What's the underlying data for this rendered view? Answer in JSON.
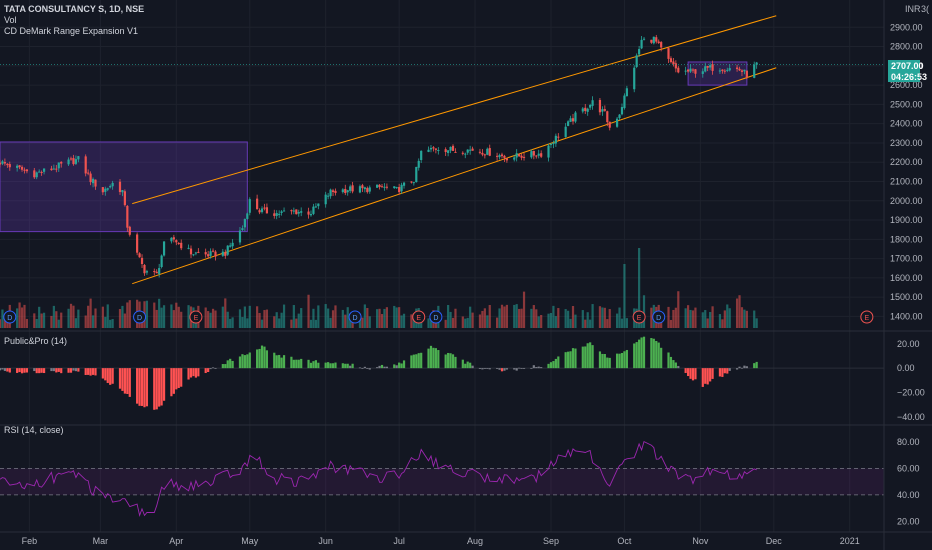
{
  "header": {
    "title": "TATA CONSULTANCY S, 1D, NSE",
    "vol_label": "Vol",
    "indicator_label": "CD DeMark Range Expansion V1",
    "currency": "INR",
    "corner_text": "3("
  },
  "panes": {
    "public_pro_label": "Public&Pro (14)",
    "rsi_label": "RSI (14, close)"
  },
  "price_tags": {
    "last_price": "2707.00",
    "countdown": "04:26:53"
  },
  "colors": {
    "up": "#26a69a",
    "down": "#ef5350",
    "channel": "#ff9800",
    "range_box": "#673ab7",
    "hist_up": "#4caf50",
    "hist_down": "#ff5252",
    "hist_neutral": "#787b86",
    "rsi_line": "#9c27b0"
  },
  "chart_data": {
    "type": "candlestick",
    "x_range": [
      "2020-01-20",
      "2021-01-15"
    ],
    "x_ticks": [
      "Feb",
      "Mar",
      "Apr",
      "May",
      "Jun",
      "Jul",
      "Aug",
      "Sep",
      "Oct",
      "Nov",
      "Dec",
      "2021"
    ],
    "x_tick_dates": [
      "2020-02-01",
      "2020-03-01",
      "2020-04-01",
      "2020-05-01",
      "2020-06-01",
      "2020-07-01",
      "2020-08-01",
      "2020-09-01",
      "2020-10-01",
      "2020-11-01",
      "2020-12-01",
      "2021-01-01"
    ],
    "price_range": [
      1340,
      3000
    ],
    "price_ticks": [
      1400,
      1500,
      1600,
      1700,
      1800,
      1900,
      2000,
      2100,
      2200,
      2300,
      2400,
      2500,
      2600,
      2700,
      2800,
      2900
    ],
    "price_tick_labels": [
      "1400.00",
      "1500.00",
      "1600.00",
      "1700.00",
      "1800.00",
      "1900.00",
      "2000.00",
      "2100.00",
      "2200.00",
      "2300.00",
      "2400.00",
      "2500.00",
      "2600.00",
      "2700.00",
      "2800.00",
      "2900.00"
    ],
    "last_price": 2707.0,
    "close_path": [
      [
        "2020-01-20",
        2200
      ],
      [
        "2020-01-28",
        2165
      ],
      [
        "2020-02-03",
        2140
      ],
      [
        "2020-02-10",
        2165
      ],
      [
        "2020-02-17",
        2200
      ],
      [
        "2020-02-21",
        2215
      ],
      [
        "2020-02-26",
        2110
      ],
      [
        "2020-03-02",
        2050
      ],
      [
        "2020-03-06",
        2090
      ],
      [
        "2020-03-10",
        2050
      ],
      [
        "2020-03-12",
        1870
      ],
      [
        "2020-03-16",
        1720
      ],
      [
        "2020-03-19",
        1640
      ],
      [
        "2020-03-24",
        1615
      ],
      [
        "2020-03-27",
        1770
      ],
      [
        "2020-03-31",
        1800
      ],
      [
        "2020-04-07",
        1730
      ],
      [
        "2020-04-14",
        1720
      ],
      [
        "2020-04-21",
        1730
      ],
      [
        "2020-04-28",
        1860
      ],
      [
        "2020-05-01",
        2000
      ],
      [
        "2020-05-05",
        1950
      ],
      [
        "2020-05-12",
        1935
      ],
      [
        "2020-05-19",
        1945
      ],
      [
        "2020-05-26",
        1940
      ],
      [
        "2020-06-03",
        2045
      ],
      [
        "2020-06-10",
        2060
      ],
      [
        "2020-06-17",
        2060
      ],
      [
        "2020-06-24",
        2070
      ],
      [
        "2020-06-30",
        2055
      ],
      [
        "2020-07-07",
        2110
      ],
      [
        "2020-07-10",
        2250
      ],
      [
        "2020-07-17",
        2275
      ],
      [
        "2020-07-24",
        2260
      ],
      [
        "2020-07-31",
        2265
      ],
      [
        "2020-08-07",
        2250
      ],
      [
        "2020-08-14",
        2225
      ],
      [
        "2020-08-21",
        2235
      ],
      [
        "2020-08-28",
        2245
      ],
      [
        "2020-09-04",
        2340
      ],
      [
        "2020-09-11",
        2440
      ],
      [
        "2020-09-18",
        2510
      ],
      [
        "2020-09-23",
        2450
      ],
      [
        "2020-09-25",
        2380
      ],
      [
        "2020-09-29",
        2455
      ],
      [
        "2020-10-05",
        2700
      ],
      [
        "2020-10-08",
        2830
      ],
      [
        "2020-10-13",
        2840
      ],
      [
        "2020-10-19",
        2725
      ],
      [
        "2020-10-23",
        2670
      ],
      [
        "2020-10-28",
        2670
      ],
      [
        "2020-11-02",
        2680
      ],
      [
        "2020-11-06",
        2690
      ],
      [
        "2020-11-11",
        2690
      ],
      [
        "2020-11-17",
        2680
      ],
      [
        "2020-11-20",
        2655
      ],
      [
        "2020-11-24",
        2707
      ]
    ],
    "channel": {
      "upper": [
        [
          "2020-03-14",
          1985
        ],
        [
          "2020-12-02",
          2960
        ]
      ],
      "lower": [
        [
          "2020-03-14",
          1570
        ],
        [
          "2020-12-02",
          2690
        ]
      ]
    },
    "range_boxes": [
      {
        "start": "2020-01-20",
        "end": "2020-04-30",
        "low": 1840,
        "high": 2305
      },
      {
        "start": "2020-10-27",
        "end": "2020-11-20",
        "low": 2600,
        "high": 2720
      }
    ],
    "event_markers": [
      {
        "label": "D",
        "date": "2020-01-24"
      },
      {
        "label": "D",
        "date": "2020-03-17"
      },
      {
        "label": "E",
        "date": "2020-04-09"
      },
      {
        "label": "D",
        "date": "2020-06-13"
      },
      {
        "label": "E",
        "date": "2020-07-09"
      },
      {
        "label": "D",
        "date": "2020-07-16"
      },
      {
        "label": "E",
        "date": "2020-10-07"
      },
      {
        "label": "D",
        "date": "2020-10-15"
      },
      {
        "label": "E",
        "date": "2021-01-08"
      }
    ],
    "volume_spikes": [
      {
        "date": "2020-10-01",
        "rel": 0.8
      },
      {
        "date": "2020-10-07",
        "rel": 1.0
      }
    ],
    "public_pro": {
      "range": [
        -45,
        28
      ],
      "ticks": [
        20,
        0,
        -20,
        -40
      ],
      "tick_labels": [
        "20.00",
        "0.00",
        "−20.00",
        "−40.00"
      ],
      "path": [
        [
          "2020-01-20",
          -2
        ],
        [
          "2020-02-05",
          -4
        ],
        [
          "2020-02-20",
          -3
        ],
        [
          "2020-03-01",
          -8
        ],
        [
          "2020-03-10",
          -18
        ],
        [
          "2020-03-17",
          -30
        ],
        [
          "2020-03-24",
          -34
        ],
        [
          "2020-03-31",
          -20
        ],
        [
          "2020-04-07",
          -8
        ],
        [
          "2020-04-12",
          -4
        ],
        [
          "2020-04-20",
          4
        ],
        [
          "2020-04-30",
          12
        ],
        [
          "2020-05-06",
          18
        ],
        [
          "2020-05-13",
          10
        ],
        [
          "2020-05-25",
          6
        ],
        [
          "2020-06-05",
          4
        ],
        [
          "2020-06-20",
          0
        ],
        [
          "2020-07-01",
          4
        ],
        [
          "2020-07-08",
          12
        ],
        [
          "2020-07-14",
          18
        ],
        [
          "2020-07-23",
          10
        ],
        [
          "2020-08-01",
          1
        ],
        [
          "2020-08-15",
          -2
        ],
        [
          "2020-08-28",
          2
        ],
        [
          "2020-09-05",
          10
        ],
        [
          "2020-09-12",
          18
        ],
        [
          "2020-09-18",
          20
        ],
        [
          "2020-09-25",
          8
        ],
        [
          "2020-10-01",
          14
        ],
        [
          "2020-10-08",
          26
        ],
        [
          "2020-10-13",
          24
        ],
        [
          "2020-10-20",
          10
        ],
        [
          "2020-10-27",
          -6
        ],
        [
          "2020-11-02",
          -14
        ],
        [
          "2020-11-10",
          -6
        ],
        [
          "2020-11-17",
          0
        ],
        [
          "2020-11-24",
          6
        ]
      ]
    },
    "rsi": {
      "range": [
        12,
        92
      ],
      "ticks": [
        80,
        60,
        40,
        20
      ],
      "tick_labels": [
        "80.00",
        "60.00",
        "40.00",
        "20.00"
      ],
      "band": [
        40,
        60
      ],
      "path": [
        [
          "2020-01-20",
          50
        ],
        [
          "2020-02-01",
          47
        ],
        [
          "2020-02-10",
          53
        ],
        [
          "2020-02-21",
          56
        ],
        [
          "2020-03-01",
          38
        ],
        [
          "2020-03-10",
          34
        ],
        [
          "2020-03-17",
          28
        ],
        [
          "2020-03-22",
          25
        ],
        [
          "2020-03-28",
          50
        ],
        [
          "2020-04-05",
          46
        ],
        [
          "2020-04-15",
          49
        ],
        [
          "2020-04-28",
          60
        ],
        [
          "2020-05-03",
          70
        ],
        [
          "2020-05-10",
          53
        ],
        [
          "2020-05-20",
          50
        ],
        [
          "2020-06-03",
          61
        ],
        [
          "2020-06-15",
          57
        ],
        [
          "2020-06-28",
          52
        ],
        [
          "2020-07-10",
          72
        ],
        [
          "2020-07-20",
          60
        ],
        [
          "2020-07-30",
          56
        ],
        [
          "2020-08-10",
          52
        ],
        [
          "2020-08-25",
          53
        ],
        [
          "2020-09-05",
          67
        ],
        [
          "2020-09-15",
          75
        ],
        [
          "2020-09-25",
          50
        ],
        [
          "2020-10-01",
          65
        ],
        [
          "2020-10-10",
          80
        ],
        [
          "2020-10-20",
          58
        ],
        [
          "2020-10-28",
          50
        ],
        [
          "2020-11-05",
          58
        ],
        [
          "2020-11-15",
          53
        ],
        [
          "2020-11-24",
          60
        ]
      ]
    }
  }
}
